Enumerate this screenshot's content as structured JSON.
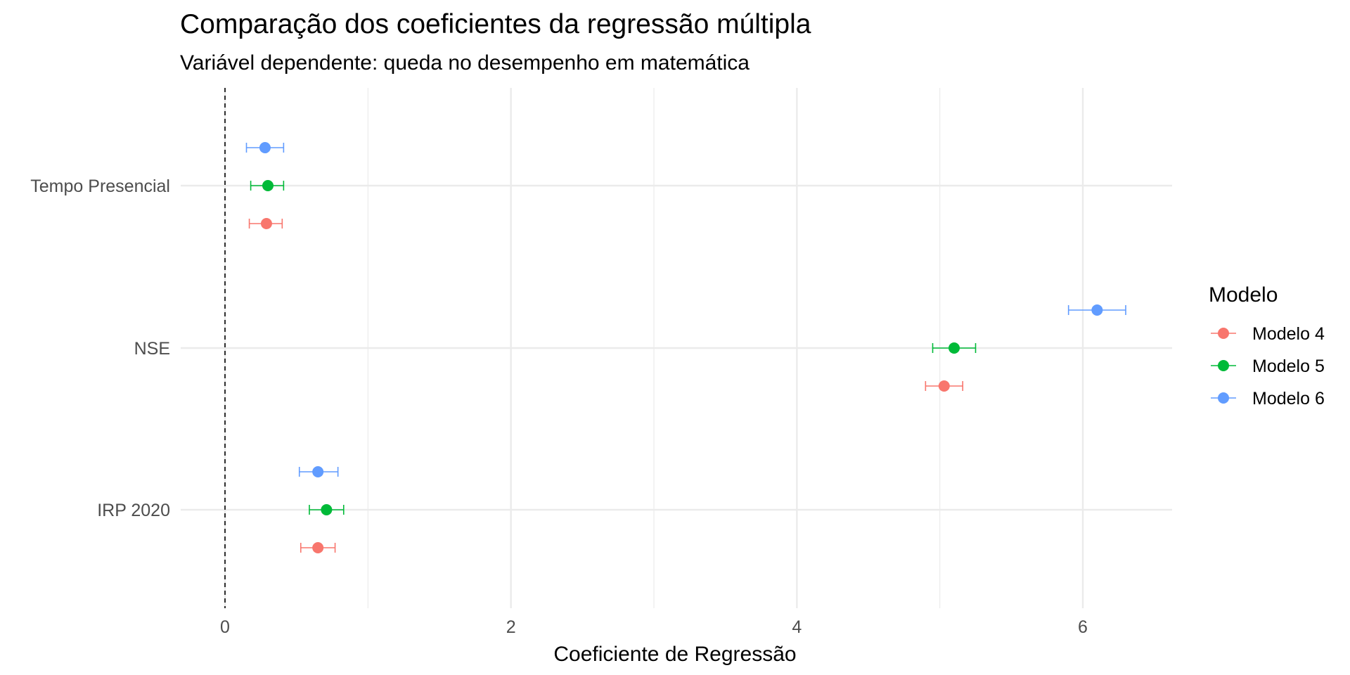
{
  "chart_data": {
    "type": "scatter",
    "title": "Comparação dos coeficientes da regressão múltipla",
    "subtitle": "Variável dependente: queda no desempenho em matemática",
    "xlabel": "Coeficiente de Regressão",
    "ylabel": "",
    "xlim": [
      -0.3,
      6.6
    ],
    "x_ticks": [
      0,
      2,
      4,
      6
    ],
    "x_tick_labels": [
      "0",
      "2",
      "4",
      "6"
    ],
    "categories": [
      "IRP 2020",
      "NSE",
      "Tempo Presencial"
    ],
    "reference_line": {
      "x": 0,
      "style": "dashed",
      "color": "#000000"
    },
    "grid": true,
    "legend": {
      "title": "Modelo",
      "position": "right"
    },
    "series": [
      {
        "name": "Modelo 4",
        "color": "#F8766D",
        "points": [
          {
            "category": "IRP 2020",
            "estimate": 0.65,
            "low": 0.53,
            "high": 0.77
          },
          {
            "category": "NSE",
            "estimate": 5.03,
            "low": 4.9,
            "high": 5.16
          },
          {
            "category": "Tempo Presencial",
            "estimate": 0.29,
            "low": 0.17,
            "high": 0.4
          }
        ]
      },
      {
        "name": "Modelo 5",
        "color": "#00BA38",
        "points": [
          {
            "category": "IRP 2020",
            "estimate": 0.71,
            "low": 0.59,
            "high": 0.83
          },
          {
            "category": "NSE",
            "estimate": 5.1,
            "low": 4.95,
            "high": 5.25
          },
          {
            "category": "Tempo Presencial",
            "estimate": 0.3,
            "low": 0.18,
            "high": 0.41
          }
        ]
      },
      {
        "name": "Modelo 6",
        "color": "#619CFF",
        "points": [
          {
            "category": "IRP 2020",
            "estimate": 0.65,
            "low": 0.52,
            "high": 0.79
          },
          {
            "category": "NSE",
            "estimate": 6.1,
            "low": 5.9,
            "high": 6.3
          },
          {
            "category": "Tempo Presencial",
            "estimate": 0.28,
            "low": 0.15,
            "high": 0.41
          }
        ]
      }
    ]
  }
}
